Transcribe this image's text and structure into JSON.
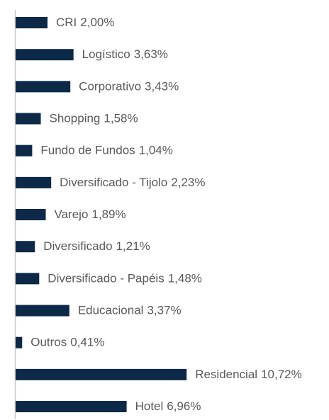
{
  "chart_data": {
    "type": "hbar",
    "categories": [
      "CRI",
      "Logístico",
      "Corporativo",
      "Shopping",
      "Fundo de Fundos",
      "Diversificado - Tijolo",
      "Varejo",
      "Diversificado",
      "Diversificado - Papéis",
      "Educacional",
      "Outros",
      "Residencial",
      "Hotel"
    ],
    "values": [
      2.0,
      3.63,
      3.43,
      1.58,
      1.04,
      2.23,
      1.89,
      1.21,
      1.48,
      3.37,
      0.41,
      10.72,
      6.96
    ],
    "value_labels": [
      "2,00%",
      "3,63%",
      "3,43%",
      "1,58%",
      "1,04%",
      "2,23%",
      "1,89%",
      "1,21%",
      "1,48%",
      "3,37%",
      "0,41%",
      "10,72%",
      "6,96%"
    ],
    "color": "#0c2a47"
  }
}
